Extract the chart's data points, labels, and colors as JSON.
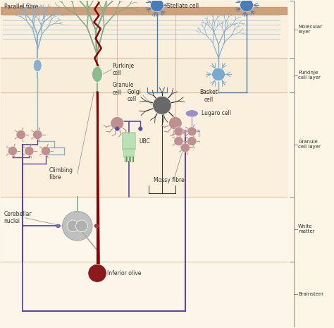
{
  "bg_color": "#fdf5e6",
  "colors": {
    "purkinje_cell": "#8fbc8f",
    "climbing_fibre": "#8b0000",
    "parallel_fibre_tree": "#87aec8",
    "stellate_cell": "#4a7db5",
    "basket_cell": "#7aaad0",
    "golgi_cell": "#696969",
    "lugaro_cell": "#9b8fc4",
    "granule_cell": "#c09090",
    "ubc_cell": "#b0ddb0",
    "mossy_fibre": "#5a4a9a",
    "cerebellar_nuclei": "#c0c0c0",
    "inferior_olive": "#8b1a1a",
    "layer_border": "#c8a882",
    "pia_stripe": "#c8946a",
    "pk_tree_green": "#88aa88",
    "left_pk_blue": "#8ab0cc",
    "granule_axon": "#c09090",
    "golgi_axon": "#333333"
  },
  "layer_labels": [
    [
      "Molecular\nlayer",
      8.5,
      9.5
    ],
    [
      "Purkinje\ncell layer",
      7.1,
      8.2
    ],
    [
      "Granule\ncell layer",
      4.2,
      6.8
    ],
    [
      "White\nmatter",
      2.2,
      4.2
    ],
    [
      "Brainstem",
      0.0,
      2.2
    ]
  ]
}
